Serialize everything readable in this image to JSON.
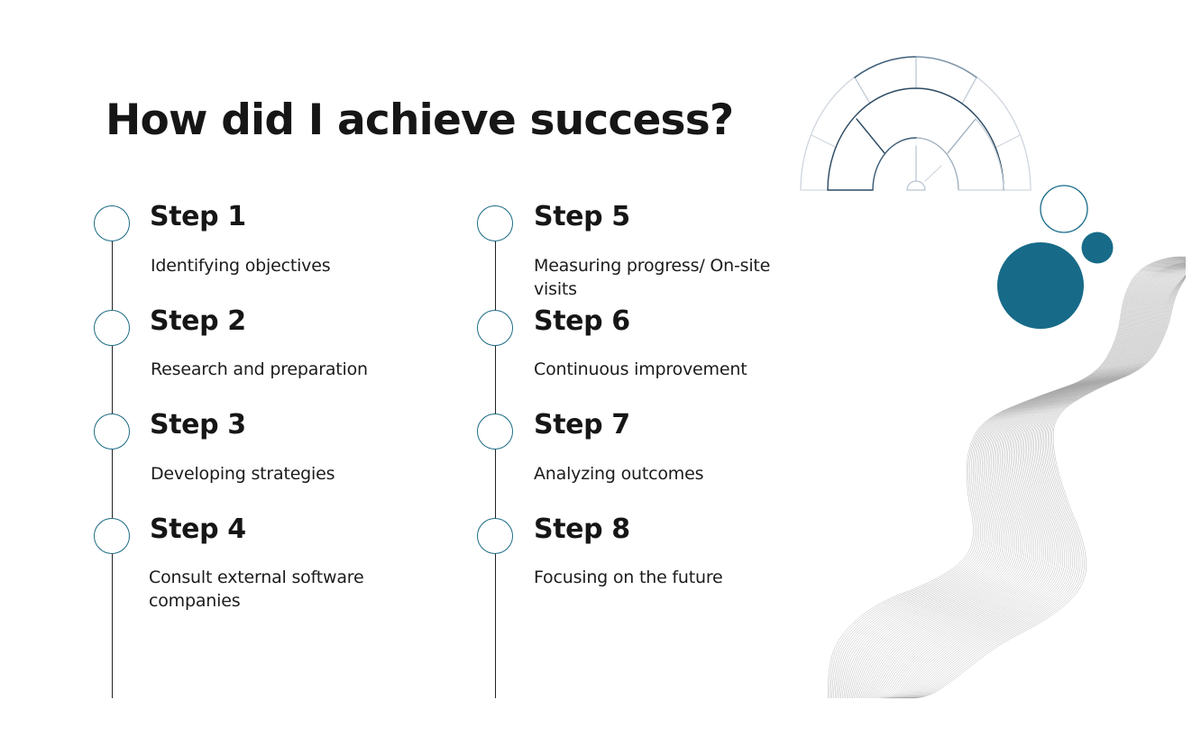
{
  "slide": {
    "title": "How did I achieve success?",
    "steps": [
      {
        "title": "Step 1",
        "description": "Identifying objectives"
      },
      {
        "title": "Step 2",
        "description": "Research and preparation"
      },
      {
        "title": "Step 3",
        "description": "Developing strategies"
      },
      {
        "title": "Step 4",
        "description": "Consult external software companies"
      },
      {
        "title": "Step 5",
        "description": "Measuring progress/ On-site visits"
      },
      {
        "title": "Step 6",
        "description": "Continuous improvement"
      },
      {
        "title": "Step 7",
        "description": "Analyzing outcomes"
      },
      {
        "title": "Step 8",
        "description": "Focusing on the future"
      }
    ]
  },
  "decorations": {
    "accent_color": "#176b88",
    "gauge_icon": "speedometer-gauge-icon",
    "wave_pattern": "wavy-line-pattern"
  }
}
